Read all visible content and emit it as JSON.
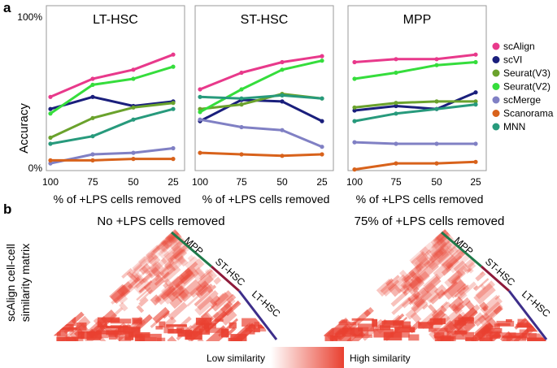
{
  "panels": {
    "a": "a",
    "b": "b"
  },
  "chart_data": [
    {
      "type": "line",
      "title": "LT-HSC",
      "x": [
        "100",
        "75",
        "50",
        "25"
      ],
      "xlabel": "% of +LPS cells removed",
      "ylabel": "Accuracy",
      "yticks": [
        "100%",
        "0%"
      ],
      "ylim": [
        0,
        100
      ],
      "series": [
        {
          "name": "scAlign",
          "values": [
            45,
            57,
            63,
            73
          ]
        },
        {
          "name": "scVI",
          "values": [
            37,
            45,
            39,
            42
          ]
        },
        {
          "name": "Seurat(V3)",
          "values": [
            18,
            31,
            38,
            41
          ]
        },
        {
          "name": "Seurat(V2)",
          "values": [
            34,
            53,
            57,
            65
          ]
        },
        {
          "name": "scMerge",
          "values": [
            1,
            7,
            8,
            11
          ]
        },
        {
          "name": "Scanorama",
          "values": [
            3,
            3,
            4,
            4
          ]
        },
        {
          "name": "MNN",
          "values": [
            14,
            19,
            30,
            37
          ]
        }
      ]
    },
    {
      "type": "line",
      "title": "ST-HSC",
      "x": [
        "100",
        "75",
        "50",
        "25"
      ],
      "xlabel": "% of +LPS cells removed",
      "ylim": [
        0,
        100
      ],
      "series": [
        {
          "name": "scAlign",
          "values": [
            50,
            61,
            68,
            72
          ]
        },
        {
          "name": "scVI",
          "values": [
            29,
            43,
            42,
            29
          ]
        },
        {
          "name": "Seurat(V3)",
          "values": [
            37,
            40,
            47,
            44
          ]
        },
        {
          "name": "Seurat(V2)",
          "values": [
            35,
            50,
            63,
            69
          ]
        },
        {
          "name": "scMerge",
          "values": [
            30,
            25,
            23,
            12
          ]
        },
        {
          "name": "Scanorama",
          "values": [
            8,
            7,
            6,
            7
          ]
        },
        {
          "name": "MNN",
          "values": [
            45,
            44,
            46,
            44
          ]
        }
      ]
    },
    {
      "type": "line",
      "title": "MPP",
      "x": [
        "100",
        "75",
        "50",
        "25"
      ],
      "xlabel": "% of +LPS cells removed",
      "ylim": [
        0,
        100
      ],
      "series": [
        {
          "name": "scAlign",
          "values": [
            68,
            70,
            70,
            73
          ]
        },
        {
          "name": "scVI",
          "values": [
            36,
            39,
            37,
            48
          ]
        },
        {
          "name": "Seurat(V3)",
          "values": [
            38,
            41,
            42,
            42
          ]
        },
        {
          "name": "Seurat(V2)",
          "values": [
            57,
            61,
            66,
            68
          ]
        },
        {
          "name": "scMerge",
          "values": [
            15,
            14,
            14,
            14
          ]
        },
        {
          "name": "Scanorama",
          "values": [
            -3,
            1,
            1,
            2
          ]
        },
        {
          "name": "MNN",
          "values": [
            29,
            34,
            37,
            40
          ]
        }
      ]
    }
  ],
  "legend": [
    {
      "name": "scAlign",
      "color": "#e8398b"
    },
    {
      "name": "scVI",
      "color": "#1a1f7c"
    },
    {
      "name": "Seurat(V3)",
      "color": "#6aa22c"
    },
    {
      "name": "Seurat(V2)",
      "color": "#35dd3c"
    },
    {
      "name": "scMerge",
      "color": "#8080c4"
    },
    {
      "name": "Scanorama",
      "color": "#d8621b"
    },
    {
      "name": "MNN",
      "color": "#279a7c"
    }
  ],
  "heatmaps": {
    "ylabel_line1": "scAlign cell-cell",
    "ylabel_line2": "similarity matrix",
    "titles": [
      "No +LPS cells removed",
      "75% of +LPS cells removed"
    ],
    "labels": [
      "MPP",
      "ST-HSC",
      "LT-HSC"
    ],
    "label_colors": [
      "#1f7a4a",
      "#8e1a3a",
      "#3d2e8a"
    ],
    "colorbar": {
      "low": "Low similarity",
      "high": "High similarity",
      "low_color": "#ffffff",
      "high_color": "#e94030"
    }
  }
}
